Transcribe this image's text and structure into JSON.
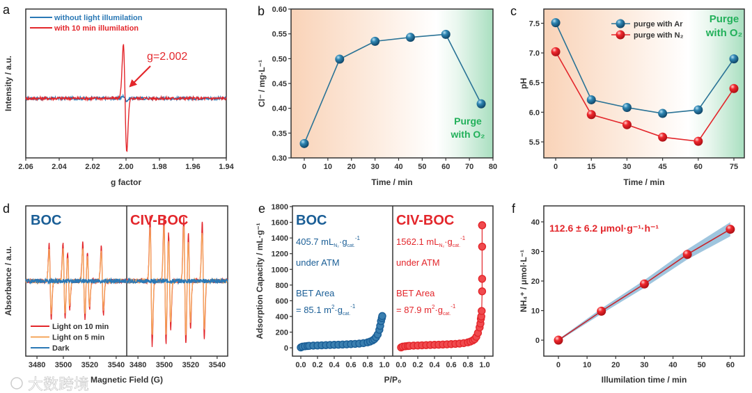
{
  "panel_labels": [
    "a",
    "b",
    "c",
    "d",
    "e",
    "f"
  ],
  "watermark": "大数跨境",
  "colors": {
    "blue": "#1d6a9c",
    "red": "#e3262b",
    "orange": "#f5a55a",
    "green": "#22b05a",
    "dark_blue": "#1a5e96"
  },
  "chart_data": [
    {
      "panel": "a",
      "type": "line",
      "xlabel": "g factor",
      "ylabel": "Intensity / a.u.",
      "xlim": [
        2.06,
        1.94
      ],
      "ylim": [
        -0.8,
        1.2
      ],
      "xticks": [
        "2.06",
        "2.04",
        "2.02",
        "2.00",
        "1.98",
        "1.96",
        "1.94"
      ],
      "xtick_values": [
        2.06,
        2.04,
        2.02,
        2.0,
        1.98,
        1.96,
        1.94
      ],
      "legend": [
        "without light illumilation",
        "with 10 min illumilation"
      ],
      "legend_placement": "top-left",
      "series": [
        {
          "name": "without light illumilation",
          "signal_center_g": 2.0006,
          "amplitude": 0.03
        },
        {
          "name": "with 10 min illumilation",
          "signal_center_g": 2.0006,
          "amplitude": 0.72
        }
      ],
      "annotation": "g=2.002"
    },
    {
      "panel": "b",
      "type": "line",
      "xlabel": "Time / min",
      "ylabel": "Cl⁻ / mg·L⁻¹",
      "xlim": [
        -5.6,
        80
      ],
      "ylim": [
        0.3,
        0.6
      ],
      "xticks": [
        "0",
        "10",
        "20",
        "30",
        "40",
        "50",
        "60",
        "70",
        "80"
      ],
      "xtick_values": [
        0,
        10,
        20,
        30,
        40,
        50,
        60,
        70,
        80
      ],
      "yticks": [
        "0.30",
        "0.35",
        "0.40",
        "0.45",
        "0.50",
        "0.55",
        "0.60"
      ],
      "ytick_values": [
        0.3,
        0.35,
        0.4,
        0.45,
        0.5,
        0.55,
        0.6
      ],
      "x": [
        0,
        15,
        30,
        45,
        60,
        75
      ],
      "values": [
        0.329,
        0.499,
        0.535,
        0.543,
        0.549,
        0.409
      ],
      "annotation": [
        "Purge",
        "with O₂"
      ]
    },
    {
      "panel": "c",
      "type": "line",
      "xlabel": "Time / min",
      "ylabel": "pH",
      "xlim": [
        -5,
        79.4
      ],
      "ylim": [
        5.23,
        7.74
      ],
      "xticks": [
        "0",
        "15",
        "30",
        "45",
        "60",
        "75"
      ],
      "xtick_values": [
        0,
        15,
        30,
        45,
        60,
        75
      ],
      "yticks": [
        "5.5",
        "6.0",
        "6.5",
        "7.0",
        "7.5"
      ],
      "ytick_values": [
        5.5,
        6.0,
        6.5,
        7.0,
        7.5
      ],
      "x": [
        0,
        15,
        30,
        45,
        60,
        75
      ],
      "series": [
        {
          "name": "purge with Ar",
          "values": [
            7.51,
            6.21,
            6.08,
            5.98,
            6.04,
            6.9
          ]
        },
        {
          "name": "purge with N₂",
          "values": [
            7.02,
            5.96,
            5.79,
            5.58,
            5.51,
            6.4
          ]
        }
      ],
      "legend_placement": "top-center",
      "annotation": [
        "Purge",
        "with O₂"
      ]
    },
    {
      "panel": "d",
      "type": "line",
      "xlabel": "Magnetic Field (G)",
      "ylabel": "Absorbance / a.u.",
      "xlim": [
        3471.5,
        3548
      ],
      "ylim": [
        -1,
        1
      ],
      "xticks": [
        "3480",
        "3500",
        "3520",
        "3540"
      ],
      "xtick_values": [
        3480,
        3500,
        3520,
        3540
      ],
      "subpanels": [
        "BOC",
        "CIV-BOC"
      ],
      "line_positions_G": [
        3490,
        3500.5,
        3504,
        3515.5,
        3519,
        3529.5
      ],
      "relative_line_intensity": [
        1,
        1,
        0.75,
        1,
        0.75,
        0.9
      ],
      "series": [
        {
          "name": "Light on 10 min",
          "amplitude": {
            "BOC": 0.5,
            "CIV-BOC": 0.85
          }
        },
        {
          "name": "Light on 5 min",
          "amplitude": {
            "BOC": 0.42,
            "CIV-BOC": 0.72
          }
        },
        {
          "name": "Dark",
          "amplitude": {
            "BOC": 0.0,
            "CIV-BOC": 0.0
          }
        }
      ],
      "legend_placement": "bottom-left"
    },
    {
      "panel": "e",
      "type": "scatter",
      "xlabel": "P/P₀",
      "ylabel": "Adsorption Capacity / mL·g⁻¹",
      "xlim": [
        -0.1,
        1.1
      ],
      "ylim": [
        -106,
        1809
      ],
      "xticks": [
        "0.0",
        "0.2",
        "0.4",
        "0.6",
        "0.8",
        "1.0"
      ],
      "xtick_values": [
        0,
        0.2,
        0.4,
        0.6,
        0.8,
        1.0
      ],
      "yticks": [
        "0",
        "200",
        "400",
        "600",
        "800",
        "1000",
        "1200",
        "1400",
        "1600",
        "1800"
      ],
      "ytick_values": [
        0,
        200,
        400,
        600,
        800,
        1000,
        1200,
        1400,
        1600,
        1800
      ],
      "series": [
        {
          "name": "BOC",
          "x": [
            0,
            0.02,
            0.05,
            0.08,
            0.1,
            0.15,
            0.2,
            0.25,
            0.3,
            0.35,
            0.4,
            0.45,
            0.5,
            0.55,
            0.6,
            0.65,
            0.7,
            0.75,
            0.8,
            0.83,
            0.86,
            0.88,
            0.9,
            0.92,
            0.94,
            0.95,
            0.96,
            0.97,
            0.975
          ],
          "values": [
            5,
            15,
            20,
            23,
            25,
            28,
            30,
            32,
            34,
            36,
            38,
            40,
            42,
            44,
            47,
            50,
            54,
            60,
            70,
            80,
            95,
            110,
            135,
            170,
            230,
            280,
            340,
            380,
            405
          ],
          "capacity": "405.7 mL",
          "ambient": "under ATM",
          "bet_label": "BET Area",
          "bet_value": "= 85.1 m"
        },
        {
          "name": "CIV-BOC",
          "x": [
            0,
            0.02,
            0.05,
            0.08,
            0.1,
            0.15,
            0.2,
            0.25,
            0.3,
            0.35,
            0.4,
            0.45,
            0.5,
            0.55,
            0.6,
            0.65,
            0.7,
            0.75,
            0.8,
            0.83,
            0.86,
            0.88,
            0.9,
            0.92,
            0.94,
            0.95,
            0.955,
            0.96,
            0.965,
            0.97,
            0.97,
            0.97,
            0.97,
            0.97
          ],
          "values": [
            5,
            15,
            20,
            23,
            25,
            28,
            30,
            32,
            34,
            36,
            38,
            40,
            42,
            44,
            47,
            50,
            54,
            60,
            70,
            80,
            95,
            110,
            140,
            190,
            260,
            310,
            370,
            400,
            470,
            720,
            880,
            1290,
            1562,
            1562
          ],
          "capacity": "1562.1 mL",
          "ambient": "under ATM",
          "bet_label": "BET Area",
          "bet_value": "= 87.9 m"
        }
      ],
      "unit_parts": {
        "n2_sub": "N₂",
        "g": "·g",
        "cat_sub": "cat.",
        "neg1": "-1",
        "sq": "2"
      }
    },
    {
      "panel": "f",
      "type": "line",
      "xlabel": "Illumilation time / min",
      "ylabel": "NH₄⁺ / μmol·L⁻¹",
      "xlim": [
        -5.1,
        64.9
      ],
      "ylim": [
        -5.4,
        45.4
      ],
      "xticks": [
        "0",
        "10",
        "20",
        "30",
        "40",
        "50",
        "60"
      ],
      "xtick_values": [
        0,
        10,
        20,
        30,
        40,
        50,
        60
      ],
      "yticks": [
        "0",
        "10",
        "20",
        "30",
        "40"
      ],
      "ytick_values": [
        0,
        10,
        20,
        30,
        40
      ],
      "x": [
        0,
        15,
        30,
        45,
        60
      ],
      "values": [
        0,
        9.8,
        19.0,
        29.0,
        37.5
      ],
      "error_band": [
        0.3,
        0.9,
        1.3,
        1.7,
        2.4
      ],
      "annotation": "112.6 ± 6.2 μmol·g⁻¹·h⁻¹"
    }
  ]
}
